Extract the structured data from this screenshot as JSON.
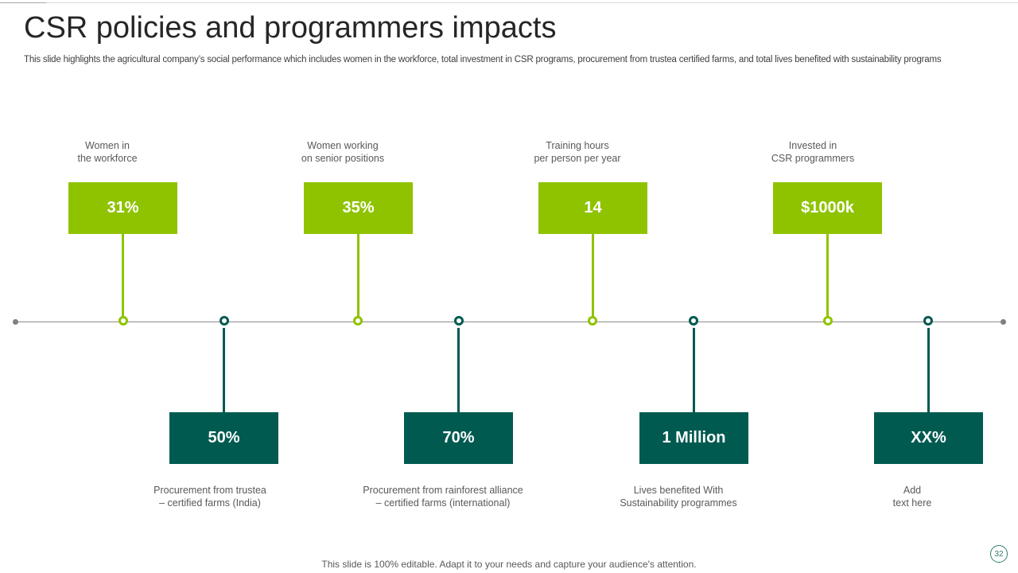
{
  "slide": {
    "title": "CSR policies and programmers impacts",
    "subtitle": "This slide highlights the agricultural company’s social performance which includes women in the workforce, total investment in CSR programs, procurement from trustea certified farms, and total lives benefited with sustainability programs",
    "footer": "This slide is 100% editable. Adapt it to your needs and capture your audience's attention.",
    "page_number": "32"
  },
  "top_items": [
    {
      "label_line1": "Women in",
      "label_line2": "the workforce",
      "value": "31%"
    },
    {
      "label_line1": "Women working",
      "label_line2": "on senior positions",
      "value": "35%"
    },
    {
      "label_line1": "Training  hours",
      "label_line2": "per person per year",
      "value": "14"
    },
    {
      "label_line1": "Invested  in",
      "label_line2": "CSR programmers",
      "value": "$1000k"
    }
  ],
  "bottom_items": [
    {
      "value": "50%",
      "label_line1": "Procurement  from trustea",
      "label_line2": "– certified farms (India)"
    },
    {
      "value": "70%",
      "label_line1": "Procurement  from rainforest alliance",
      "label_line2": "– certified farms (international)"
    },
    {
      "value": "1 Million",
      "label_line1": "Lives benefited With",
      "label_line2": "Sustainability programmes"
    },
    {
      "value": "XX%",
      "label_line1": "Add",
      "label_line2": "text here"
    }
  ],
  "colors": {
    "green_accent": "#8fc300",
    "teal_accent": "#005a50",
    "axis": "#8c8c8c"
  }
}
